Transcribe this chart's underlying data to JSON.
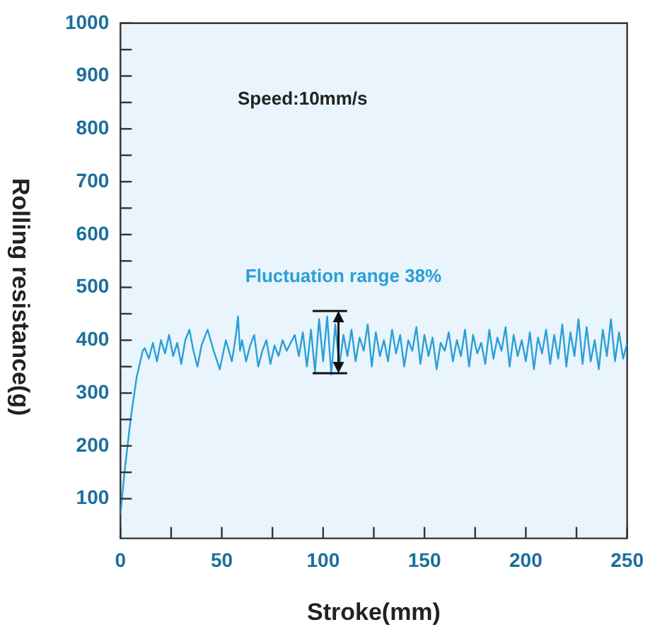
{
  "chart_data": {
    "type": "line",
    "xlabel": "Stroke(mm)",
    "ylabel": "Rolling resistance(g)",
    "annotations": [
      "Speed:10mm/s",
      "Fluctuation range 38%"
    ],
    "x": [
      0,
      2,
      5,
      8,
      11,
      12,
      14,
      16,
      18,
      20,
      22,
      24,
      26,
      28,
      30,
      32,
      34,
      36,
      38,
      40,
      43,
      46,
      49,
      52,
      55,
      57,
      58,
      59,
      60,
      62,
      64,
      66,
      68,
      70,
      72,
      74,
      76,
      78,
      80,
      82,
      84,
      86,
      88,
      90,
      92,
      94,
      96,
      98,
      100,
      102,
      104,
      106,
      108,
      110,
      112,
      114,
      116,
      118,
      120,
      122,
      124,
      126,
      128,
      130,
      132,
      134,
      136,
      138,
      140,
      142,
      144,
      146,
      148,
      150,
      152,
      154,
      156,
      158,
      160,
      162,
      164,
      166,
      168,
      170,
      172,
      174,
      176,
      178,
      180,
      182,
      184,
      186,
      188,
      190,
      192,
      194,
      196,
      198,
      200,
      202,
      204,
      206,
      208,
      210,
      212,
      214,
      216,
      218,
      220,
      222,
      224,
      226,
      228,
      230,
      232,
      234,
      236,
      238,
      240,
      242,
      244,
      246,
      248,
      250
    ],
    "series": [
      {
        "color": "#2a9fd6",
        "values": [
          70,
          150,
          250,
          330,
          380,
          385,
          365,
          395,
          360,
          400,
          375,
          410,
          370,
          395,
          355,
          400,
          420,
          380,
          350,
          390,
          420,
          380,
          345,
          400,
          360,
          410,
          445,
          380,
          400,
          360,
          390,
          410,
          350,
          380,
          400,
          355,
          390,
          370,
          400,
          380,
          395,
          410,
          370,
          415,
          350,
          420,
          340,
          440,
          360,
          445,
          335,
          430,
          350,
          410,
          370,
          420,
          360,
          405,
          380,
          430,
          350,
          415,
          370,
          400,
          360,
          420,
          375,
          410,
          350,
          400,
          380,
          425,
          355,
          410,
          370,
          405,
          345,
          395,
          380,
          415,
          360,
          400,
          370,
          420,
          350,
          410,
          375,
          395,
          355,
          420,
          365,
          405,
          380,
          425,
          350,
          410,
          370,
          400,
          360,
          415,
          345,
          405,
          375,
          420,
          355,
          410,
          365,
          430,
          350,
          415,
          370,
          440,
          355,
          425,
          360,
          400,
          345,
          420,
          370,
          440,
          360,
          415,
          365,
          395
        ]
      }
    ],
    "xlim": [
      0,
      250
    ],
    "xticks": [
      0,
      {
        "value": 25,
        "label": null
      },
      50,
      {
        "value": 75,
        "label": null
      },
      100,
      {
        "value": 125,
        "label": null
      },
      150,
      {
        "value": 175,
        "label": null
      },
      200,
      {
        "value": 225,
        "label": null
      },
      250
    ],
    "ylim": [
      25,
      1000
    ],
    "yticks": [
      100,
      {
        "value": 150,
        "label": null
      },
      200,
      {
        "value": 250,
        "label": null
      },
      300,
      {
        "value": 350,
        "label": null
      },
      400,
      {
        "value": 450,
        "label": null
      },
      500,
      {
        "value": 550,
        "label": null
      },
      600,
      {
        "value": 650,
        "label": null
      },
      700,
      {
        "value": 750,
        "label": null
      },
      800,
      {
        "value": 850,
        "label": null
      },
      900,
      {
        "value": 950,
        "label": null
      },
      1000
    ],
    "grid": false,
    "legend": false,
    "marker": "none",
    "line_style": "solid"
  }
}
